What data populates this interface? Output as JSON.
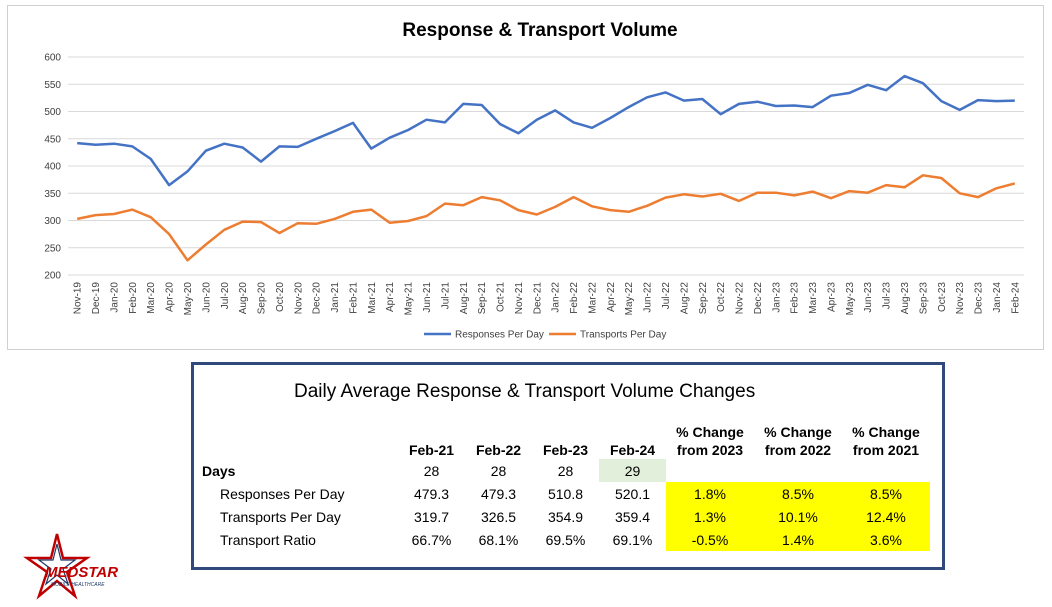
{
  "chart_data": {
    "type": "line",
    "title": "Response & Transport Volume",
    "xlabel": "",
    "ylabel": "",
    "ylim": [
      200,
      600
    ],
    "yticks": [
      200,
      250,
      300,
      350,
      400,
      450,
      500,
      550,
      600
    ],
    "grid": true,
    "legend_position": "bottom",
    "categories": [
      "Nov-19",
      "Dec-19",
      "Jan-20",
      "Feb-20",
      "Mar-20",
      "Apr-20",
      "May-20",
      "Jun-20",
      "Jul-20",
      "Aug-20",
      "Sep-20",
      "Oct-20",
      "Nov-20",
      "Dec-20",
      "Jan-21",
      "Feb-21",
      "Mar-21",
      "Apr-21",
      "May-21",
      "Jun-21",
      "Jul-21",
      "Aug-21",
      "Sep-21",
      "Oct-21",
      "Nov-21",
      "Dec-21",
      "Jan-22",
      "Feb-22",
      "Mar-22",
      "Apr-22",
      "May-22",
      "Jun-22",
      "Jul-22",
      "Aug-22",
      "Sep-22",
      "Oct-22",
      "Nov-22",
      "Dec-22",
      "Jan-23",
      "Feb-23",
      "Mar-23",
      "Apr-23",
      "May-23",
      "Jun-23",
      "Jul-23",
      "Aug-23",
      "Sep-23",
      "Oct-23",
      "Nov-23",
      "Dec-23",
      "Jan-24",
      "Feb-24"
    ],
    "series": [
      {
        "name": "Responses Per Day",
        "color": "#4472c4",
        "values": [
          442,
          439,
          441,
          436,
          413,
          365,
          390,
          428,
          441,
          434,
          408,
          436,
          435,
          450,
          464,
          479,
          432,
          452,
          466,
          485,
          480,
          514,
          512,
          477,
          460,
          485,
          502,
          480,
          470,
          488,
          508,
          526,
          535,
          520,
          523,
          495,
          514,
          518,
          510,
          511,
          508,
          529,
          534,
          549,
          539,
          565,
          552,
          519,
          503,
          521,
          519,
          520
        ]
      },
      {
        "name": "Transports Per Day",
        "color": "#ed7d31",
        "values": [
          303,
          310,
          312,
          320,
          306,
          275,
          227,
          256,
          283,
          298,
          297,
          277,
          295,
          294,
          303,
          316,
          320,
          296,
          299,
          308,
          331,
          328,
          343,
          337,
          319,
          311,
          325,
          343,
          326,
          319,
          316,
          327,
          342,
          348,
          344,
          349,
          336,
          351,
          351,
          346,
          353,
          341,
          354,
          351,
          365,
          361,
          383,
          378,
          350,
          343,
          359,
          368
        ]
      }
    ]
  },
  "table": {
    "title": "Daily Average Response & Transport Volume Changes",
    "headers": [
      "Feb-21",
      "Feb-22",
      "Feb-23",
      "Feb-24"
    ],
    "pct_headers": [
      {
        "line1": "% Change",
        "line2": "from 2023"
      },
      {
        "line1": "% Change",
        "line2": "from 2022"
      },
      {
        "line1": "% Change",
        "line2": "from 2021"
      }
    ],
    "days": {
      "label": "Days",
      "values": [
        "28",
        "28",
        "28",
        "29"
      ]
    },
    "rows": [
      {
        "label": "Responses Per Day",
        "values": [
          "479.3",
          "479.3",
          "510.8",
          "520.1"
        ],
        "pct": [
          "1.8%",
          "8.5%",
          "8.5%"
        ]
      },
      {
        "label": "Transports Per Day",
        "values": [
          "319.7",
          "326.5",
          "354.9",
          "359.4"
        ],
        "pct": [
          "1.3%",
          "10.1%",
          "12.4%"
        ]
      },
      {
        "label": "Transport Ratio",
        "values": [
          "66.7%",
          "68.1%",
          "69.5%",
          "69.1%"
        ],
        "pct": [
          "-0.5%",
          "1.4%",
          "3.6%"
        ]
      }
    ]
  },
  "logo": {
    "text": "MEDSTAR",
    "subtext": "MOBILE HEALTHCARE",
    "color": "#c00000"
  }
}
